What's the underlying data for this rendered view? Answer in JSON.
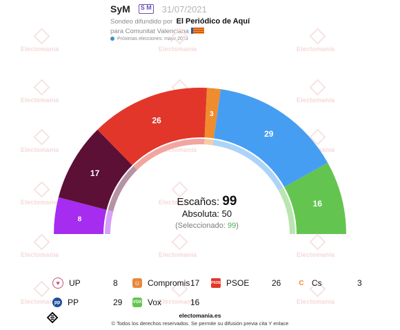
{
  "header": {
    "pollster": "SyM",
    "pollster_logo": "S M",
    "date": "31/07/2021",
    "source_prefix": "Sondeo difundido por",
    "source": "El Periódico de Aquí",
    "region": "para Comunitat Valenciana",
    "next_elections": "Próximas elecciones: mayo 2023"
  },
  "watermark": "Electomania",
  "chart_data": {
    "type": "parliament-semicircle",
    "total_seats": 99,
    "parties": [
      {
        "name": "UP",
        "seats": 8,
        "color": "#a62cf0"
      },
      {
        "name": "Compromis",
        "seats": 17,
        "color": "#5c1035"
      },
      {
        "name": "PSOE",
        "seats": 26,
        "color": "#e2362a"
      },
      {
        "name": "Cs",
        "seats": 3,
        "color": "#f08c2e"
      },
      {
        "name": "PP",
        "seats": 29,
        "color": "#469ef2"
      },
      {
        "name": "Vox",
        "seats": 16,
        "color": "#63c550"
      }
    ]
  },
  "center": {
    "seats_label": "Escaños:",
    "seats_value": "99",
    "majority_label": "Absoluta:",
    "majority_value": "50",
    "selected_open": "(Seleccionado:",
    "selected_value": "99",
    "selected_close": ")"
  },
  "legend": [
    {
      "name": "UP",
      "seats": "8",
      "icon": "up-heart-icon",
      "color": "#c0507a"
    },
    {
      "name": "Compromis",
      "seats": "17",
      "icon": "compromis-icon",
      "color": "#e9873a"
    },
    {
      "name": "PSOE",
      "seats": "26",
      "icon": "psoe-icon",
      "color": "#e2362a"
    },
    {
      "name": "Cs",
      "seats": "3",
      "icon": "cs-icon",
      "color": "#f08c2e"
    },
    {
      "name": "PP",
      "seats": "29",
      "icon": "pp-icon",
      "color": "#1d4f9c"
    },
    {
      "name": "Vox",
      "seats": "16",
      "icon": "vox-icon",
      "color": "#63c550"
    }
  ],
  "footer": {
    "site": "electomania.es",
    "copyright": "© Todos los derechos reservados. Se permite su difusión previa cita Y enlace"
  }
}
